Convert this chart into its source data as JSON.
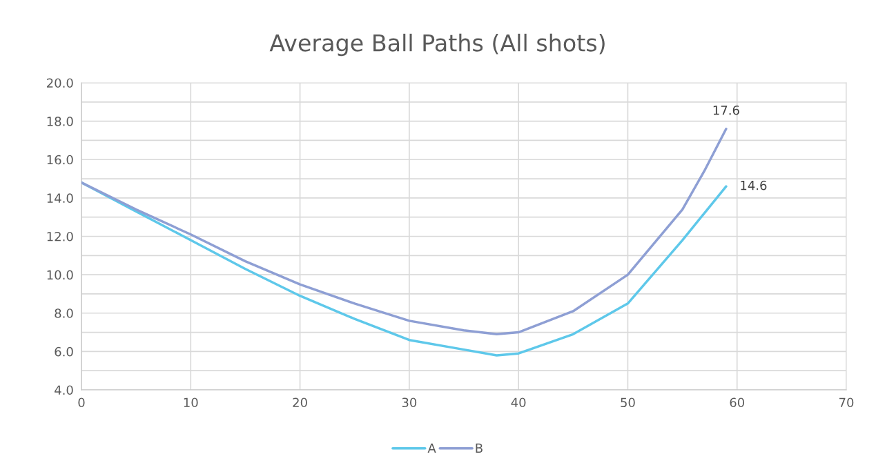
{
  "chart_data": {
    "type": "line",
    "title": "Average Ball Paths (All shots)",
    "x": [
      0,
      5,
      10,
      15,
      20,
      25,
      30,
      35,
      38,
      40,
      45,
      50,
      55,
      57,
      59
    ],
    "series": [
      {
        "name": "A",
        "color": "#5ec8ea",
        "values": [
          14.8,
          13.3,
          11.8,
          10.3,
          8.9,
          7.7,
          6.6,
          6.1,
          5.8,
          5.9,
          6.9,
          8.5,
          11.8,
          13.2,
          14.6
        ]
      },
      {
        "name": "B",
        "color": "#8e9fd4",
        "values": [
          14.8,
          13.4,
          12.1,
          10.7,
          9.5,
          8.5,
          7.6,
          7.1,
          6.9,
          7.0,
          8.1,
          10.0,
          13.4,
          15.4,
          17.6
        ]
      }
    ],
    "annotations": [
      {
        "text": "17.6",
        "x": 59,
        "y": 17.6
      },
      {
        "text": "14.6",
        "x": 59,
        "y": 14.6
      }
    ],
    "xlim": [
      0,
      70
    ],
    "xticks": [
      0,
      10,
      20,
      30,
      40,
      50,
      60,
      70
    ],
    "ylim": [
      4,
      20
    ],
    "yticks": [
      {
        "value": 4,
        "label": "4.0"
      },
      {
        "value": 5,
        "label": null
      },
      {
        "value": 6,
        "label": "6.0"
      },
      {
        "value": 7,
        "label": null
      },
      {
        "value": 8,
        "label": "8.0"
      },
      {
        "value": 9,
        "label": null
      },
      {
        "value": 10,
        "label": "10.0"
      },
      {
        "value": 11,
        "label": null
      },
      {
        "value": 12,
        "label": "12.0"
      },
      {
        "value": 13,
        "label": null
      },
      {
        "value": 14,
        "label": "14.0"
      },
      {
        "value": 15,
        "label": null
      },
      {
        "value": 16,
        "label": "16.0"
      },
      {
        "value": 17,
        "label": null
      },
      {
        "value": 18,
        "label": "18.0"
      },
      {
        "value": 19,
        "label": null
      },
      {
        "value": 20,
        "label": "20.0"
      }
    ],
    "grid": true,
    "legend": "bottom",
    "marker": "none",
    "line_style": "solid"
  }
}
